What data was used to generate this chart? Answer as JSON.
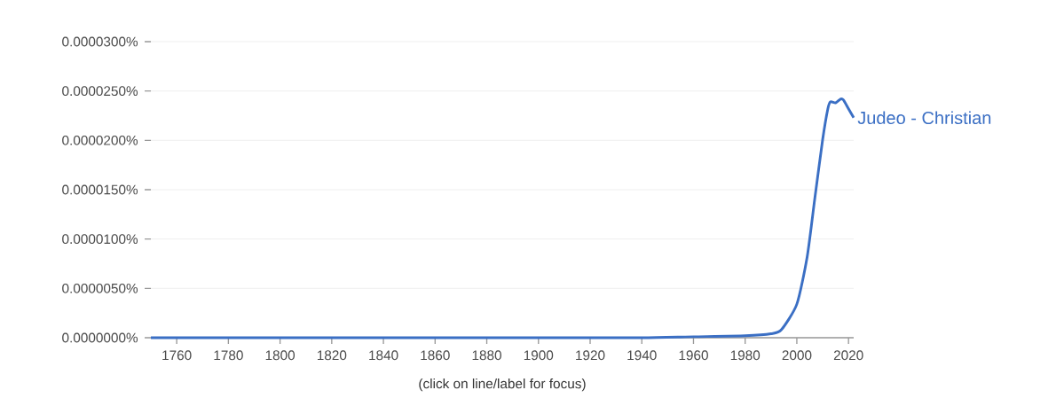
{
  "chart_data": {
    "type": "line",
    "x": [
      1750,
      1800,
      1850,
      1900,
      1940,
      1960,
      1980,
      1990,
      1994,
      2000,
      2004,
      2007,
      2010,
      2012,
      2013,
      2015,
      2017,
      2018,
      2020,
      2022
    ],
    "series": [
      {
        "name": "Judeo - Christian",
        "color": "#3b6fc4",
        "values": [
          0,
          0,
          0,
          0,
          0,
          1e-07,
          2e-07,
          4e-07,
          8e-07,
          3.4e-06,
          8.2e-06,
          1.42e-05,
          2.01e-05,
          2.32e-05,
          2.39e-05,
          2.38e-05,
          2.42e-05,
          2.41e-05,
          2.32e-05,
          2.23e-05
        ]
      }
    ],
    "xlim": [
      1750,
      2022
    ],
    "xticks": [
      1760,
      1780,
      1800,
      1820,
      1840,
      1860,
      1880,
      1900,
      1920,
      1940,
      1960,
      1980,
      2000,
      2020
    ],
    "ylim": [
      0,
      3e-05
    ],
    "yticks": [
      {
        "value": 0,
        "label": "0.0000000%"
      },
      {
        "value": 5e-06,
        "label": "0.0000050%"
      },
      {
        "value": 1e-05,
        "label": "0.0000100%"
      },
      {
        "value": 1.5e-05,
        "label": "0.0000150%"
      },
      {
        "value": 2e-05,
        "label": "0.0000200%"
      },
      {
        "value": 2.5e-05,
        "label": "0.0000250%"
      },
      {
        "value": 3e-05,
        "label": "0.0000300%"
      }
    ],
    "grid": "y",
    "legend": false,
    "annotations": [
      "(click on line/label for focus)"
    ]
  }
}
